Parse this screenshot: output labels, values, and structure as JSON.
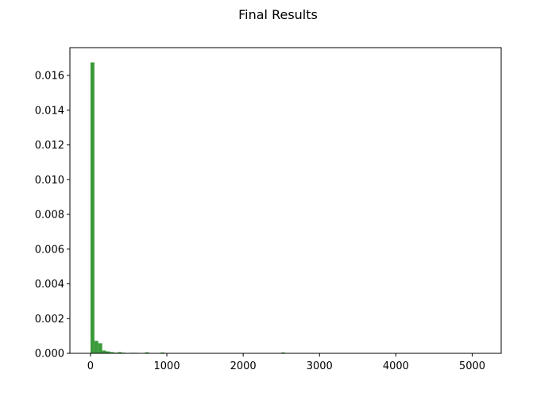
{
  "chart_data": {
    "type": "bar",
    "title": "Final Results",
    "xlabel": "",
    "ylabel": "",
    "xlim": [
      -270,
      5380
    ],
    "ylim": [
      0,
      0.0176
    ],
    "grid": false,
    "legend": "none",
    "bar_color": "#3a9a3a",
    "x_ticks": [
      0,
      1000,
      2000,
      3000,
      4000,
      5000
    ],
    "y_ticks": [
      0.0,
      0.002,
      0.004,
      0.006,
      0.008,
      0.01,
      0.012,
      0.014,
      0.016
    ],
    "x_tick_labels": [
      "0",
      "1000",
      "2000",
      "3000",
      "4000",
      "5000"
    ],
    "y_tick_labels": [
      "0.000",
      "0.002",
      "0.004",
      "0.006",
      "0.008",
      "0.010",
      "0.012",
      "0.014",
      "0.016"
    ],
    "bins": [
      {
        "x0": 0,
        "x1": 51,
        "value": 0.01675
      },
      {
        "x0": 51,
        "x1": 102,
        "value": 0.00072
      },
      {
        "x0": 102,
        "x1": 153,
        "value": 0.00058
      },
      {
        "x0": 153,
        "x1": 204,
        "value": 0.00016
      },
      {
        "x0": 204,
        "x1": 255,
        "value": 0.00011
      },
      {
        "x0": 255,
        "x1": 306,
        "value": 7e-05
      },
      {
        "x0": 306,
        "x1": 357,
        "value": 4e-05
      },
      {
        "x0": 357,
        "x1": 408,
        "value": 7e-05
      },
      {
        "x0": 408,
        "x1": 459,
        "value": 4e-05
      },
      {
        "x0": 510,
        "x1": 561,
        "value": 3e-05
      },
      {
        "x0": 561,
        "x1": 612,
        "value": 3e-05
      },
      {
        "x0": 714,
        "x1": 765,
        "value": 6e-05
      },
      {
        "x0": 867,
        "x1": 918,
        "value": 2e-05
      },
      {
        "x0": 918,
        "x1": 969,
        "value": 5e-05
      },
      {
        "x0": 1326,
        "x1": 1377,
        "value": 2e-05
      },
      {
        "x0": 2040,
        "x1": 2091,
        "value": 2e-05
      },
      {
        "x0": 2499,
        "x1": 2550,
        "value": 5e-05
      },
      {
        "x0": 3060,
        "x1": 3111,
        "value": 2e-05
      },
      {
        "x0": 4896,
        "x1": 4947,
        "value": 2e-05
      },
      {
        "x0": 5049,
        "x1": 5100,
        "value": 2e-05
      }
    ]
  }
}
